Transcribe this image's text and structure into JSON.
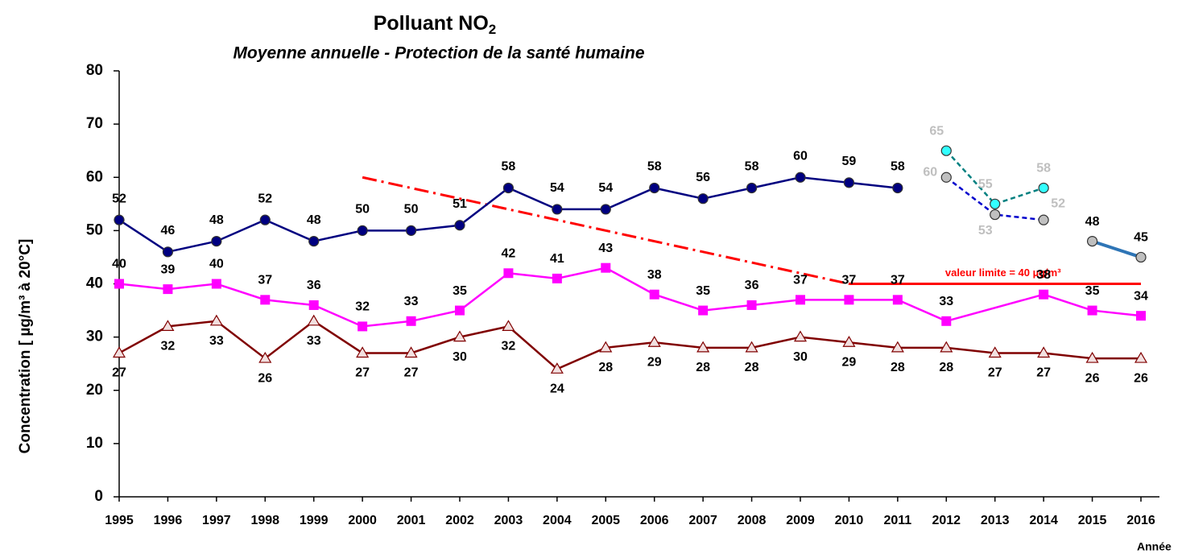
{
  "chart_data": {
    "type": "line",
    "title": "Polluant NO",
    "title_subscript": "2",
    "subtitle": "Moyenne annuelle - Protection de la santé humaine",
    "y_label": "Concentration [ µg/m³ à 20°C]",
    "x_label": "Année",
    "xlim": [
      1995,
      2016
    ],
    "xticks": [
      1995,
      1996,
      1997,
      1998,
      1999,
      2000,
      2001,
      2002,
      2003,
      2004,
      2005,
      2006,
      2007,
      2008,
      2009,
      2010,
      2011,
      2012,
      2013,
      2014,
      2015,
      2016
    ],
    "ylim": [
      0,
      80
    ],
    "yticks": [
      0,
      10,
      20,
      30,
      40,
      50,
      60,
      70,
      80
    ],
    "series": [
      {
        "color": "#000080",
        "marker": "circle",
        "marker_fill": "#000080",
        "label_color": "#000000",
        "x": [
          1995,
          1996,
          1997,
          1998,
          1999,
          2000,
          2001,
          2002,
          2003,
          2004,
          2005,
          2006,
          2007,
          2008,
          2009,
          2010,
          2011
        ],
        "values": [
          52,
          46,
          48,
          52,
          48,
          50,
          50,
          51,
          58,
          54,
          54,
          58,
          56,
          58,
          60,
          59,
          58
        ]
      },
      {
        "color": "#ff00ff",
        "marker": "square",
        "marker_fill": "#ff00ff",
        "label_color": "#000000",
        "x": [
          1995,
          1996,
          1997,
          1998,
          1999,
          2000,
          2001,
          2002,
          2003,
          2004,
          2005,
          2006,
          2007,
          2008,
          2009,
          2010,
          2011,
          2012,
          2014,
          2015,
          2016
        ],
        "values": [
          40,
          39,
          40,
          37,
          36,
          32,
          33,
          35,
          42,
          41,
          43,
          38,
          35,
          36,
          37,
          37,
          37,
          33,
          38,
          35,
          34
        ]
      },
      {
        "color": "#800000",
        "marker": "triangle",
        "marker_fill": "#f2e0e0",
        "label_color": "#000000",
        "x": [
          1995,
          1996,
          1997,
          1998,
          1999,
          2000,
          2001,
          2002,
          2003,
          2004,
          2005,
          2006,
          2007,
          2008,
          2009,
          2010,
          2011,
          2012,
          2013,
          2014,
          2015,
          2016
        ],
        "values": [
          27,
          32,
          33,
          26,
          33,
          27,
          27,
          30,
          32,
          24,
          28,
          29,
          28,
          28,
          30,
          29,
          28,
          28,
          27,
          27,
          26,
          26
        ]
      },
      {
        "color": "#008080",
        "dash": "6 4",
        "marker": "circle",
        "marker_fill": "#33ffff",
        "label_color": "#bfbfbf",
        "x": [
          2012,
          2013,
          2014
        ],
        "values": [
          65,
          55,
          58
        ]
      },
      {
        "color": "#0000cc",
        "dash": "6 4",
        "marker": "circle",
        "marker_fill": "#c0c0c0",
        "label_color": "#bfbfbf",
        "x": [
          2012,
          2013,
          2014
        ],
        "values": [
          60,
          53,
          52
        ]
      },
      {
        "color": "#2e75b6",
        "width": 4,
        "marker": "circle",
        "marker_fill": "#bfbfbf",
        "label_color": "#000000",
        "x": [
          2015,
          2016
        ],
        "values": [
          48,
          45
        ]
      }
    ],
    "trend": {
      "color": "#ff0000",
      "x": [
        2000,
        2010
      ],
      "values": [
        60,
        40
      ]
    },
    "limit": {
      "color": "#ff0000",
      "x": [
        2010,
        2016
      ],
      "values": [
        40,
        40
      ],
      "label": "valeur limite = 40 µg/m³"
    }
  }
}
